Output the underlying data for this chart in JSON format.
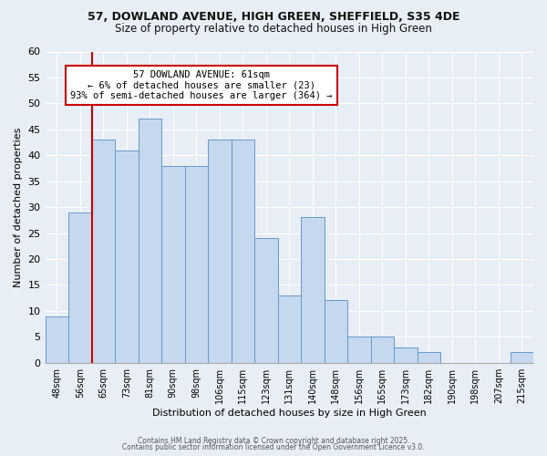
{
  "title_line1": "57, DOWLAND AVENUE, HIGH GREEN, SHEFFIELD, S35 4DE",
  "title_line2": "Size of property relative to detached houses in High Green",
  "xlabel": "Distribution of detached houses by size in High Green",
  "ylabel": "Number of detached properties",
  "categories": [
    "48sqm",
    "56sqm",
    "65sqm",
    "73sqm",
    "81sqm",
    "90sqm",
    "98sqm",
    "106sqm",
    "115sqm",
    "123sqm",
    "131sqm",
    "140sqm",
    "148sqm",
    "156sqm",
    "165sqm",
    "173sqm",
    "182sqm",
    "190sqm",
    "198sqm",
    "207sqm",
    "215sqm"
  ],
  "values": [
    9,
    29,
    43,
    41,
    47,
    38,
    38,
    43,
    43,
    24,
    13,
    28,
    12,
    5,
    5,
    3,
    2,
    0,
    0,
    0,
    2
  ],
  "bar_color": "#c5d8ed",
  "bar_edge_color": "#6699cc",
  "background_color": "#e8eef5",
  "grid_color": "#ffffff",
  "annotation_text": "57 DOWLAND AVENUE: 61sqm\n← 6% of detached houses are smaller (23)\n93% of semi-detached houses are larger (364) →",
  "annotation_box_color": "#ffffff",
  "annotation_box_edge": "#cc0000",
  "redline_color": "#cc0000",
  "ylim": [
    0,
    60
  ],
  "yticks": [
    0,
    5,
    10,
    15,
    20,
    25,
    30,
    35,
    40,
    45,
    50,
    55,
    60
  ],
  "footer_line1": "Contains HM Land Registry data © Crown copyright and database right 2025.",
  "footer_line2": "Contains public sector information licensed under the Open Government Licence v3.0."
}
